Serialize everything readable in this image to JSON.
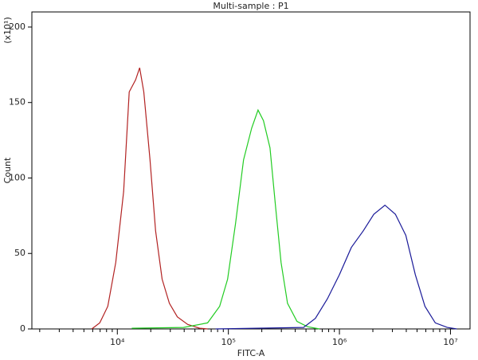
{
  "chart_data": {
    "type": "line",
    "title": "Multi-sample : P1",
    "xlabel": "FITC-A",
    "ylabel": "Count",
    "y_multiplier": "(x10¹)",
    "xscale": "log",
    "xlim": [
      1700,
      15000000
    ],
    "ylim": [
      0,
      210
    ],
    "xticks": [
      {
        "value": 10000,
        "label": "10⁴"
      },
      {
        "value": 100000,
        "label": "10⁵"
      },
      {
        "value": 1000000,
        "label": "10⁶"
      },
      {
        "value": 10000000,
        "label": "10⁷"
      }
    ],
    "xminorticks": [
      2000,
      3000,
      4000,
      5000,
      6000,
      7000,
      8000,
      9000,
      20000,
      30000,
      40000,
      50000,
      60000,
      70000,
      80000,
      90000,
      200000,
      300000,
      400000,
      500000,
      600000,
      700000,
      800000,
      900000,
      2000000,
      3000000,
      4000000,
      5000000,
      6000000,
      7000000,
      8000000,
      9000000
    ],
    "yticks": [
      0,
      50,
      100,
      150,
      200
    ],
    "series": [
      {
        "color": "#b22222",
        "x": [
          5890,
          6950,
          8200,
          9680,
          11400,
          12800,
          14600,
          15900,
          17300,
          19700,
          22100,
          25300,
          29400,
          34700,
          43000,
          55100,
          65000
        ],
        "values": [
          0,
          4,
          15,
          44,
          91,
          157,
          165,
          173,
          157,
          112,
          65,
          33,
          17,
          8,
          3,
          0.5,
          0
        ]
      },
      {
        "color": "#22cc22",
        "x": [
          13500,
          39500,
          65000,
          83400,
          98400,
          116000,
          137000,
          162000,
          185000,
          207000,
          237000,
          266000,
          298000,
          341000,
          415000,
          516000,
          661000
        ],
        "values": [
          0.5,
          1,
          4,
          15,
          33,
          70,
          112,
          133,
          145,
          138,
          120,
          81,
          44,
          17,
          5,
          1.5,
          0
        ]
      },
      {
        "color": "#1a1a99",
        "x": [
          76700,
          475000,
          608000,
          780000,
          1000000,
          1280000,
          1640000,
          2040000,
          2570000,
          3190000,
          3960000,
          4820000,
          5890000,
          7300000,
          9350000,
          11400000
        ],
        "values": [
          0,
          1,
          7,
          20,
          36,
          54,
          65,
          76,
          82,
          76,
          62,
          36,
          15,
          4,
          1,
          0
        ]
      }
    ]
  }
}
